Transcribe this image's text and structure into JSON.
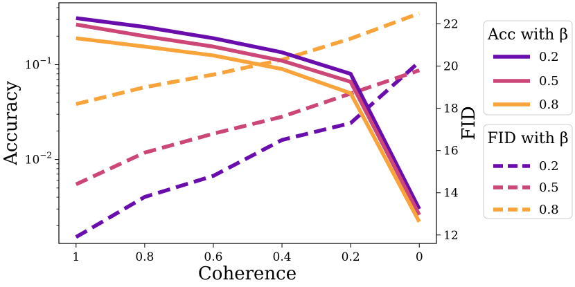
{
  "chart_data": {
    "type": "line",
    "xlabel": "Coherence",
    "ylabel_left": "Accuracy",
    "ylabel_right": "FID",
    "x": [
      1,
      0.8,
      0.6,
      0.4,
      0.2,
      0
    ],
    "x_ticks": [
      "1",
      "0.8",
      "0.6",
      "0.4",
      "0.2",
      "0"
    ],
    "xlim": [
      1.05,
      -0.05
    ],
    "y_left_scale": "log",
    "y_left_lim": [
      0.0013,
      0.45
    ],
    "y_left_ticks": [
      {
        "value": 0.1,
        "base": "10",
        "exp": "−1"
      },
      {
        "value": 0.01,
        "base": "10",
        "exp": "−2"
      }
    ],
    "y_right_lim": [
      11.6,
      23.0
    ],
    "y_right_ticks": [
      "12",
      "14",
      "16",
      "18",
      "20",
      "22"
    ],
    "colors": {
      "0.2": "#6a0dad",
      "0.5": "#cc4778",
      "0.8": "#f9a33b"
    },
    "accuracy_series": [
      {
        "name": "0.2",
        "values": [
          0.31,
          0.25,
          0.19,
          0.135,
          0.08,
          0.003
        ]
      },
      {
        "name": "0.5",
        "values": [
          0.265,
          0.2,
          0.155,
          0.11,
          0.066,
          0.0026
        ]
      },
      {
        "name": "0.8",
        "values": [
          0.19,
          0.155,
          0.125,
          0.09,
          0.05,
          0.0022
        ]
      }
    ],
    "fid_series": [
      {
        "name": "0.2",
        "values": [
          11.9,
          13.8,
          14.8,
          16.5,
          17.3,
          20.2
        ]
      },
      {
        "name": "0.5",
        "values": [
          14.4,
          15.9,
          16.8,
          17.6,
          18.7,
          19.8
        ]
      },
      {
        "name": "0.8",
        "values": [
          18.2,
          19.0,
          19.6,
          20.3,
          21.3,
          22.5
        ]
      }
    ],
    "legend_acc": {
      "title": "Acc with β",
      "entries": [
        "0.2",
        "0.5",
        "0.8"
      ]
    },
    "legend_fid": {
      "title": "FID with β",
      "entries": [
        "0.2",
        "0.5",
        "0.8"
      ]
    }
  }
}
